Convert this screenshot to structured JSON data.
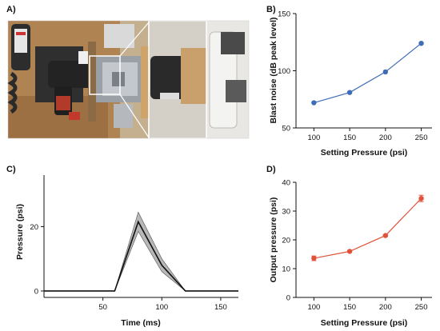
{
  "panel_labels": [
    "A)",
    "B)",
    "C)",
    "D)"
  ],
  "photo": {
    "description_icon": "device-photo",
    "colors": {
      "wood": "#a7794a",
      "metal": "#8f9499",
      "dark": "#2b2b2b",
      "bg": "#c9b79a"
    }
  },
  "chart_data": [
    {
      "type": "line",
      "panel": "B)",
      "x": [
        100,
        150,
        200,
        250
      ],
      "series": [
        {
          "values": [
            72,
            81,
            99,
            124
          ],
          "color": "#3f6cb8"
        }
      ],
      "xlabel": "Setting Pressure (psi)",
      "ylabel": "Blast noise (dB peak level)",
      "xlim": [
        75,
        265
      ],
      "ylim": [
        50,
        150
      ],
      "xticks": [
        100,
        150,
        200,
        250
      ],
      "yticks": [
        50,
        100,
        150
      ],
      "grid": false
    },
    {
      "type": "line",
      "panel": "C)",
      "x": [
        0,
        60,
        80,
        100,
        120,
        165
      ],
      "series": [
        {
          "values": [
            0,
            0,
            21.5,
            8,
            0,
            0
          ],
          "lower": [
            0,
            0,
            18.5,
            6,
            0,
            0
          ],
          "upper": [
            0,
            0,
            24.5,
            10,
            0,
            0
          ],
          "color": "#111111"
        }
      ],
      "xlabel": "Time (ms)",
      "ylabel": "Pressure (psi)",
      "xlim": [
        0,
        165
      ],
      "ylim": [
        -2,
        36
      ],
      "xticks": [
        50,
        100,
        150
      ],
      "yticks": [
        0,
        20
      ],
      "grid": false
    },
    {
      "type": "line",
      "panel": "D)",
      "x": [
        100,
        150,
        200,
        250
      ],
      "series": [
        {
          "values": [
            13.6,
            16,
            21.5,
            34.4
          ],
          "error": [
            0.8,
            0.3,
            0.3,
            1.1
          ],
          "color": "#e0523a"
        }
      ],
      "xlabel": "Setting Pressure (psi)",
      "ylabel": "Output pressure (psi)",
      "xlim": [
        75,
        265
      ],
      "ylim": [
        0,
        40
      ],
      "xticks": [
        100,
        150,
        200,
        250
      ],
      "yticks": [
        0,
        10,
        20,
        30,
        40
      ],
      "grid": false
    }
  ]
}
